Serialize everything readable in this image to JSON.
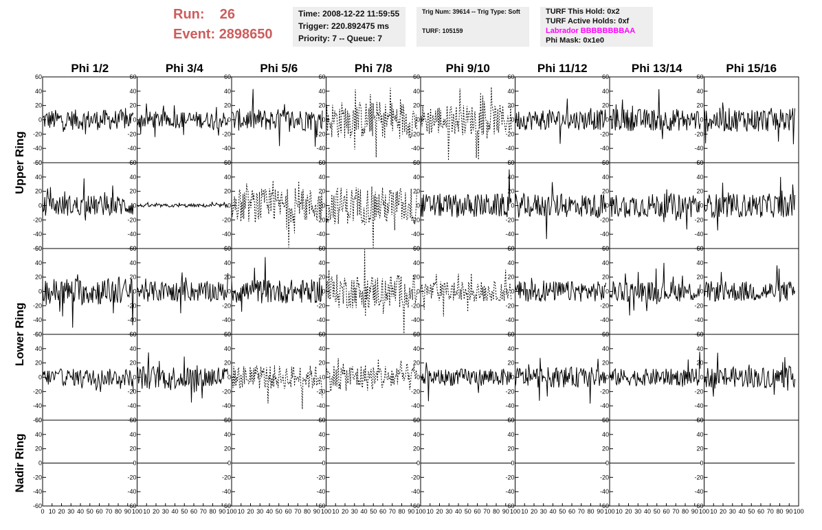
{
  "header": {
    "run_label": "Run:",
    "run_value": "26",
    "event_label": "Event:",
    "event_value": "2898650",
    "time": "Time: 2008-12-22 11:59:55",
    "trigger": "Trigger: 220.892475 ms",
    "priority": "Priority: 7 -- Queue: 7",
    "trig_num": "Trig Num: 39614 -- Trig Type: Soft",
    "turf": "TURF: 105159",
    "turf_this_hold": "TURF This Hold: 0x2",
    "turf_active_holds": "TURF Active Holds: 0xf",
    "labrador": "Labrador BBBBBBBBAA",
    "phi_mask": "Phi Mask: 0x1e0",
    "labrador_color": "#ff00ff",
    "run_color": "#cd5c5c"
  },
  "chart_data": {
    "type": "line",
    "columns": [
      "Phi 1/2",
      "Phi 3/4",
      "Phi 5/6",
      "Phi 7/8",
      "Phi 9/10",
      "Phi 11/12",
      "Phi 13/14",
      "Phi 15/16"
    ],
    "rows": [
      "Upper Ring",
      "Lower Ring",
      "Nadir Ring"
    ],
    "rows_of_panels": 5,
    "ylim": [
      -60,
      60
    ],
    "yticks": [
      -60,
      -40,
      -20,
      0,
      20,
      40,
      60
    ],
    "xlim": [
      0,
      100
    ],
    "xtick_labels": [
      "0",
      "10",
      "20",
      "30",
      "40",
      "50",
      "60",
      "70",
      "80",
      "90",
      "100"
    ],
    "samples_per_trace": 128,
    "grid": false,
    "panel_amplitude": [
      [
        12,
        10,
        13,
        22,
        18,
        12,
        13,
        14
      ],
      [
        12,
        2,
        20,
        22,
        14,
        14,
        14,
        14
      ],
      [
        16,
        12,
        14,
        20,
        12,
        12,
        12,
        12
      ],
      [
        10,
        14,
        14,
        16,
        10,
        12,
        10,
        12
      ],
      [
        0,
        0,
        0,
        0,
        0,
        0,
        0,
        0
      ]
    ],
    "panel_dashed": [
      [
        false,
        false,
        false,
        true,
        true,
        false,
        false,
        false
      ],
      [
        false,
        false,
        true,
        true,
        false,
        false,
        false,
        false
      ],
      [
        false,
        false,
        false,
        true,
        true,
        false,
        false,
        false
      ],
      [
        false,
        false,
        true,
        true,
        false,
        false,
        false,
        false
      ],
      [
        false,
        false,
        false,
        false,
        false,
        false,
        false,
        false
      ]
    ]
  }
}
